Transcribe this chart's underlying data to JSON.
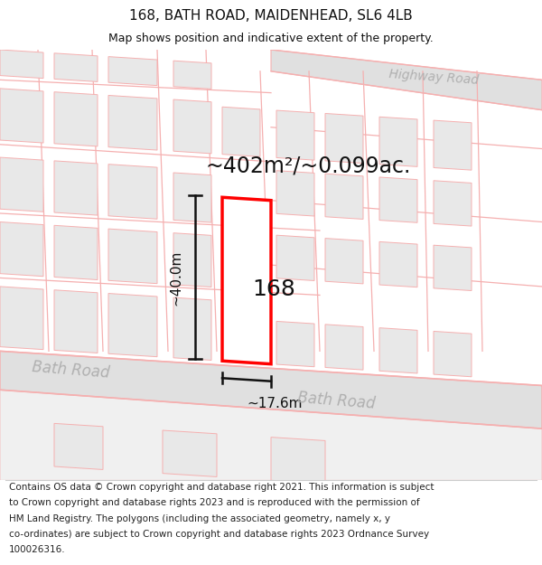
{
  "title": "168, BATH ROAD, MAIDENHEAD, SL6 4LB",
  "subtitle": "Map shows position and indicative extent of the property.",
  "area_text": "~402m²/~0.099ac.",
  "house_number": "168",
  "dim_width": "~17.6m",
  "dim_height": "~40.0m",
  "road_label_left": "Bath Road",
  "road_label_right": "Bath Road",
  "highway_road_label": "Highway Road",
  "footer_lines": [
    "Contains OS data © Crown copyright and database right 2021. This information is subject",
    "to Crown copyright and database rights 2023 and is reproduced with the permission of",
    "HM Land Registry. The polygons (including the associated geometry, namely x, y",
    "co-ordinates) are subject to Crown copyright and database rights 2023 Ordnance Survey",
    "100026316."
  ],
  "bg_color": "#ffffff",
  "map_bg_color": "#ffffff",
  "building_fill_color": "#e8e8e8",
  "building_edge_color": "#c8c8c8",
  "street_line_color": "#f5b0b0",
  "highlight_color": "#ff0000",
  "dim_line_color": "#111111",
  "road_text_color": "#b0b0b0",
  "road_fill_color": "#e0e0e0",
  "footer_fontsize": 7.5,
  "title_fontsize": 11,
  "subtitle_fontsize": 9
}
